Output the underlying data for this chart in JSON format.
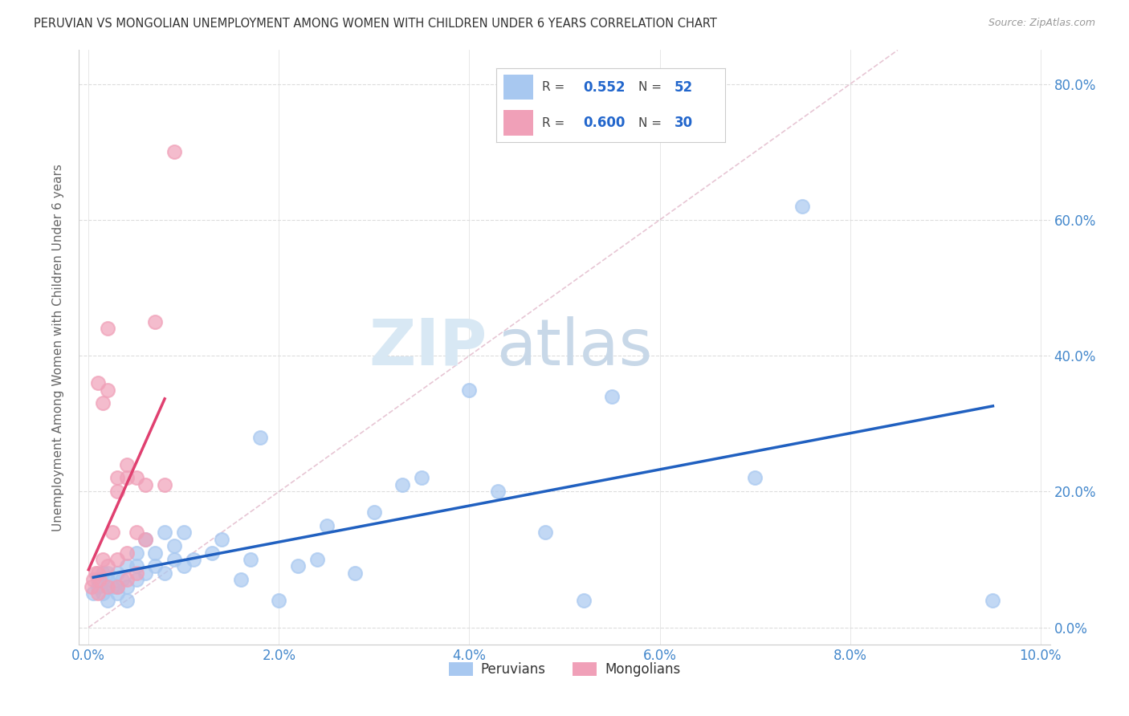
{
  "title": "PERUVIAN VS MONGOLIAN UNEMPLOYMENT AMONG WOMEN WITH CHILDREN UNDER 6 YEARS CORRELATION CHART",
  "source": "Source: ZipAtlas.com",
  "ylabel": "Unemployment Among Women with Children Under 6 years",
  "xlim": [
    -0.001,
    0.101
  ],
  "ylim": [
    -0.025,
    0.85
  ],
  "x_tick_vals": [
    0.0,
    0.02,
    0.04,
    0.06,
    0.08,
    0.1
  ],
  "y_tick_vals": [
    0.0,
    0.2,
    0.4,
    0.6,
    0.8
  ],
  "peruvians_x": [
    0.0005,
    0.001,
    0.001,
    0.0015,
    0.0015,
    0.002,
    0.002,
    0.002,
    0.002,
    0.0025,
    0.003,
    0.003,
    0.003,
    0.0035,
    0.004,
    0.004,
    0.004,
    0.005,
    0.005,
    0.005,
    0.006,
    0.006,
    0.007,
    0.007,
    0.008,
    0.008,
    0.009,
    0.009,
    0.01,
    0.01,
    0.011,
    0.013,
    0.014,
    0.016,
    0.017,
    0.018,
    0.02,
    0.022,
    0.024,
    0.025,
    0.028,
    0.03,
    0.033,
    0.035,
    0.04,
    0.043,
    0.048,
    0.052,
    0.055,
    0.07,
    0.075,
    0.095
  ],
  "peruvians_y": [
    0.05,
    0.06,
    0.07,
    0.05,
    0.08,
    0.04,
    0.06,
    0.07,
    0.08,
    0.06,
    0.05,
    0.06,
    0.08,
    0.07,
    0.04,
    0.06,
    0.09,
    0.07,
    0.09,
    0.11,
    0.08,
    0.13,
    0.09,
    0.11,
    0.08,
    0.14,
    0.1,
    0.12,
    0.09,
    0.14,
    0.1,
    0.11,
    0.13,
    0.07,
    0.1,
    0.28,
    0.04,
    0.09,
    0.1,
    0.15,
    0.08,
    0.17,
    0.21,
    0.22,
    0.35,
    0.2,
    0.14,
    0.04,
    0.34,
    0.22,
    0.62,
    0.04
  ],
  "mongolians_x": [
    0.0003,
    0.0005,
    0.0007,
    0.001,
    0.001,
    0.001,
    0.0012,
    0.0015,
    0.0015,
    0.002,
    0.002,
    0.002,
    0.002,
    0.0025,
    0.003,
    0.003,
    0.003,
    0.003,
    0.004,
    0.004,
    0.004,
    0.004,
    0.005,
    0.005,
    0.005,
    0.006,
    0.006,
    0.007,
    0.008,
    0.009
  ],
  "mongolians_y": [
    0.06,
    0.07,
    0.08,
    0.05,
    0.08,
    0.36,
    0.07,
    0.1,
    0.33,
    0.06,
    0.09,
    0.35,
    0.44,
    0.14,
    0.06,
    0.1,
    0.2,
    0.22,
    0.07,
    0.11,
    0.22,
    0.24,
    0.08,
    0.14,
    0.22,
    0.13,
    0.21,
    0.45,
    0.21,
    0.7
  ],
  "peruvian_color": "#A8C8F0",
  "mongolian_color": "#F0A0B8",
  "peruvian_line_color": "#2060C0",
  "mongolian_line_color": "#E04070",
  "diagonal_line_color": "#D0A0B0",
  "R_peruvian": 0.552,
  "N_peruvian": 52,
  "R_mongolian": 0.6,
  "N_mongolian": 30,
  "watermark_zip": "ZIP",
  "watermark_atlas": "atlas",
  "background_color": "#FFFFFF",
  "grid_color": "#DDDDDD"
}
